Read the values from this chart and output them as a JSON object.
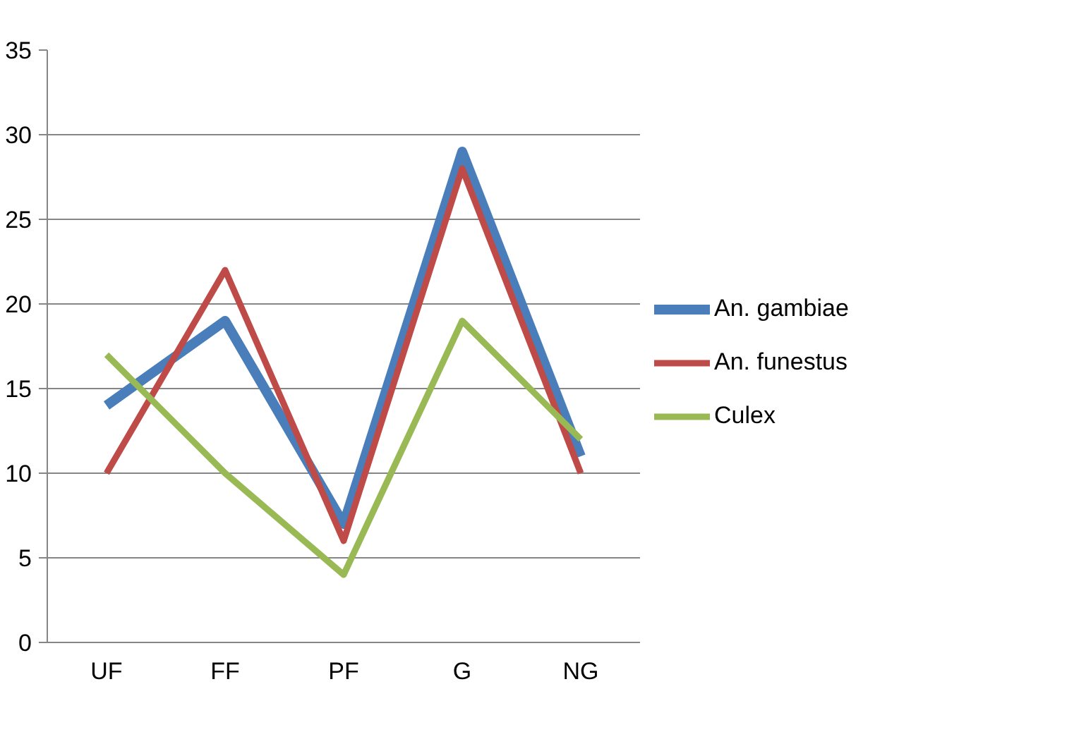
{
  "chart_data": {
    "type": "line",
    "categories": [
      "UF",
      "FF",
      "PF",
      "G",
      "NG"
    ],
    "series": [
      {
        "name": "An. gambiae",
        "color": "#4a7ebb",
        "values": [
          14,
          19,
          7,
          29,
          11
        ]
      },
      {
        "name": "An. funestus",
        "color": "#be4b48",
        "values": [
          10,
          22,
          6,
          28,
          10
        ]
      },
      {
        "name": "Culex",
        "color": "#98b954",
        "values": [
          17,
          10,
          4,
          19,
          12
        ]
      }
    ],
    "ylim": [
      0,
      35
    ],
    "yticks": [
      0,
      5,
      10,
      15,
      20,
      25,
      30,
      35
    ],
    "grid": "y",
    "legend": "right",
    "marker": "none",
    "line_style": "solid"
  }
}
